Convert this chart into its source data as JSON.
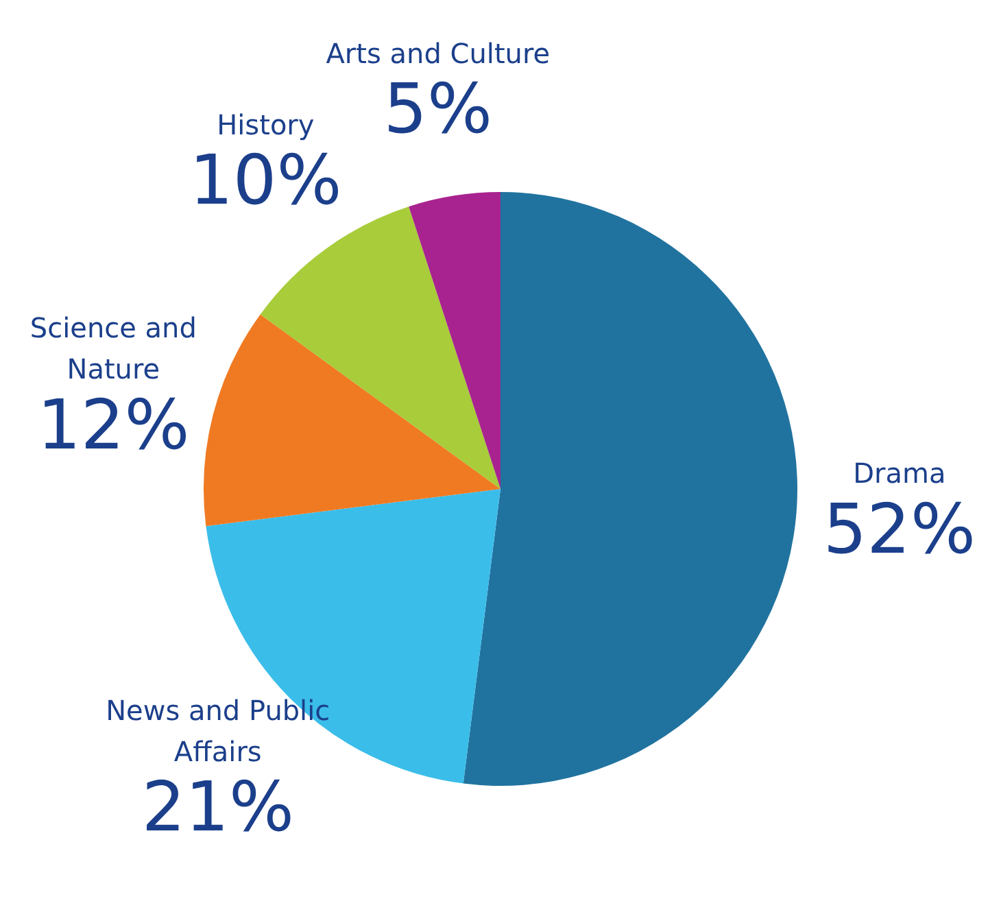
{
  "chart_data": {
    "type": "pie",
    "categories": [
      "Drama",
      "News and Public Affairs",
      "Science and Nature",
      "History",
      "Arts and Culture"
    ],
    "values": [
      52,
      21,
      12,
      10,
      5
    ],
    "colors": [
      "#21739f",
      "#3bbdea",
      "#f07a22",
      "#a8cc3a",
      "#a8238f"
    ],
    "value_labels": [
      "52%",
      "21%",
      "12%",
      "10%",
      "5%"
    ],
    "legend": false
  }
}
